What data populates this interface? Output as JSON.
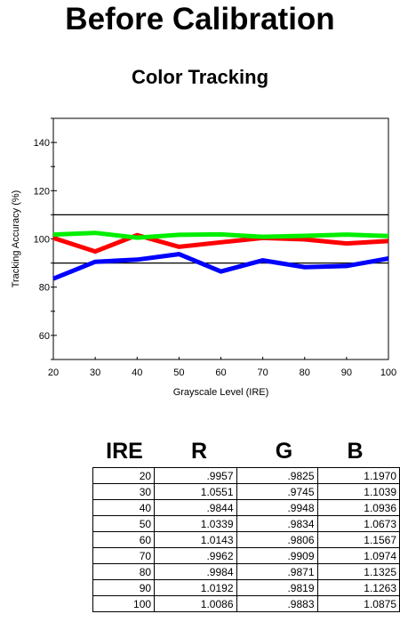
{
  "page_title": "Before Calibration",
  "chart_data": {
    "type": "line",
    "title": "Color Tracking",
    "xlabel": "Grayscale Level (IRE)",
    "ylabel": "Tracking Accuracy (%)",
    "x": [
      20,
      30,
      40,
      50,
      60,
      70,
      80,
      90,
      100
    ],
    "xlim": [
      20,
      100
    ],
    "ylim": [
      50,
      150
    ],
    "yticks": [
      60,
      80,
      100,
      120,
      140
    ],
    "reference_lines": [
      110,
      90
    ],
    "series": [
      {
        "color": "#ff0000",
        "values": [
          100.4,
          94.8,
          101.6,
          96.7,
          98.6,
          100.4,
          99.8,
          98.1,
          99.1
        ]
      },
      {
        "color": "#00ee00",
        "values": [
          101.8,
          102.5,
          100.5,
          101.7,
          101.9,
          100.9,
          101.3,
          101.8,
          101.2
        ]
      },
      {
        "color": "#0000ff",
        "values": [
          83.5,
          90.5,
          91.4,
          93.7,
          86.5,
          91.1,
          88.3,
          88.8,
          91.9
        ]
      }
    ],
    "grid": false
  },
  "table": {
    "headers": [
      "IRE",
      "R",
      "G",
      "B"
    ],
    "rows": [
      [
        "20",
        ".9957",
        ".9825",
        "1.1970"
      ],
      [
        "30",
        "1.0551",
        ".9745",
        "1.1039"
      ],
      [
        "40",
        ".9844",
        ".9948",
        "1.0936"
      ],
      [
        "50",
        "1.0339",
        ".9834",
        "1.0673"
      ],
      [
        "60",
        "1.0143",
        ".9806",
        "1.1567"
      ],
      [
        "70",
        ".9962",
        ".9909",
        "1.0974"
      ],
      [
        "80",
        ".9984",
        ".9871",
        "1.1325"
      ],
      [
        "90",
        "1.0192",
        ".9819",
        "1.1263"
      ],
      [
        "100",
        "1.0086",
        ".9883",
        "1.0875"
      ]
    ]
  }
}
